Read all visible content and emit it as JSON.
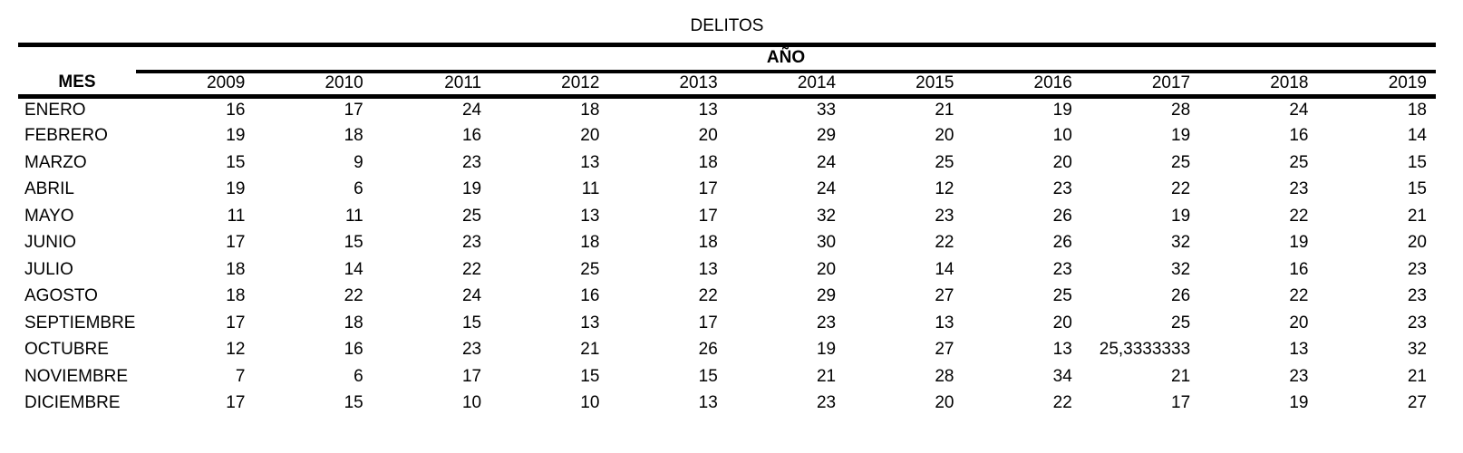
{
  "colors": {
    "background": "#ffffff",
    "text": "#000000",
    "border": "#000000"
  },
  "table": {
    "title": "DELITOS",
    "group_header": "AÑO",
    "row_header": "MES",
    "years": [
      "2009",
      "2010",
      "2011",
      "2012",
      "2013",
      "2014",
      "2015",
      "2016",
      "2017",
      "2018",
      "2019"
    ],
    "rows": [
      {
        "mes": "ENERO",
        "values": [
          "16",
          "17",
          "24",
          "18",
          "13",
          "33",
          "21",
          "19",
          "28",
          "24",
          "18"
        ]
      },
      {
        "mes": "FEBRERO",
        "values": [
          "19",
          "18",
          "16",
          "20",
          "20",
          "29",
          "20",
          "10",
          "19",
          "16",
          "14"
        ]
      },
      {
        "mes": "MARZO",
        "values": [
          "15",
          "9",
          "23",
          "13",
          "18",
          "24",
          "25",
          "20",
          "25",
          "25",
          "15"
        ]
      },
      {
        "mes": "ABRIL",
        "values": [
          "19",
          "6",
          "19",
          "11",
          "17",
          "24",
          "12",
          "23",
          "22",
          "23",
          "15"
        ]
      },
      {
        "mes": "MAYO",
        "values": [
          "11",
          "11",
          "25",
          "13",
          "17",
          "32",
          "23",
          "26",
          "19",
          "22",
          "21"
        ]
      },
      {
        "mes": "JUNIO",
        "values": [
          "17",
          "15",
          "23",
          "18",
          "18",
          "30",
          "22",
          "26",
          "32",
          "19",
          "20"
        ]
      },
      {
        "mes": "JULIO",
        "values": [
          "18",
          "14",
          "22",
          "25",
          "13",
          "20",
          "14",
          "23",
          "32",
          "16",
          "23"
        ]
      },
      {
        "mes": "AGOSTO",
        "values": [
          "18",
          "22",
          "24",
          "16",
          "22",
          "29",
          "27",
          "25",
          "26",
          "22",
          "23"
        ]
      },
      {
        "mes": "SEPTIEMBRE",
        "values": [
          "17",
          "18",
          "15",
          "13",
          "17",
          "23",
          "13",
          "20",
          "25",
          "20",
          "23"
        ]
      },
      {
        "mes": "OCTUBRE",
        "values": [
          "12",
          "16",
          "23",
          "21",
          "26",
          "19",
          "27",
          "13",
          "25,3333333",
          "13",
          "32"
        ]
      },
      {
        "mes": "NOVIEMBRE",
        "values": [
          "7",
          "6",
          "17",
          "15",
          "15",
          "21",
          "28",
          "34",
          "21",
          "23",
          "21"
        ]
      },
      {
        "mes": "DICIEMBRE",
        "values": [
          "17",
          "15",
          "10",
          "10",
          "13",
          "23",
          "20",
          "22",
          "17",
          "19",
          "27"
        ]
      }
    ]
  },
  "chart_data": {
    "type": "table",
    "title": "DELITOS",
    "column_group_label": "AÑO",
    "row_header_label": "MES",
    "categories": [
      "ENERO",
      "FEBRERO",
      "MARZO",
      "ABRIL",
      "MAYO",
      "JUNIO",
      "JULIO",
      "AGOSTO",
      "SEPTIEMBRE",
      "OCTUBRE",
      "NOVIEMBRE",
      "DICIEMBRE"
    ],
    "series": [
      {
        "name": "2009",
        "values": [
          16,
          19,
          15,
          19,
          11,
          17,
          18,
          18,
          17,
          12,
          7,
          17
        ]
      },
      {
        "name": "2010",
        "values": [
          17,
          18,
          9,
          6,
          11,
          15,
          14,
          22,
          18,
          16,
          6,
          15
        ]
      },
      {
        "name": "2011",
        "values": [
          24,
          16,
          23,
          19,
          25,
          23,
          22,
          24,
          15,
          23,
          17,
          10
        ]
      },
      {
        "name": "2012",
        "values": [
          18,
          20,
          13,
          11,
          13,
          18,
          25,
          16,
          13,
          21,
          15,
          10
        ]
      },
      {
        "name": "2013",
        "values": [
          13,
          20,
          18,
          17,
          17,
          18,
          13,
          22,
          17,
          26,
          15,
          13
        ]
      },
      {
        "name": "2014",
        "values": [
          33,
          29,
          24,
          24,
          32,
          30,
          20,
          29,
          23,
          19,
          21,
          23
        ]
      },
      {
        "name": "2015",
        "values": [
          21,
          20,
          25,
          12,
          23,
          22,
          14,
          27,
          13,
          27,
          28,
          20
        ]
      },
      {
        "name": "2016",
        "values": [
          19,
          10,
          20,
          23,
          26,
          26,
          23,
          25,
          20,
          13,
          34,
          22
        ]
      },
      {
        "name": "2017",
        "values": [
          28,
          19,
          25,
          22,
          19,
          32,
          32,
          26,
          25,
          25.3333333,
          21,
          17
        ]
      },
      {
        "name": "2018",
        "values": [
          24,
          16,
          25,
          23,
          22,
          19,
          16,
          22,
          20,
          13,
          23,
          19
        ]
      },
      {
        "name": "2019",
        "values": [
          18,
          14,
          15,
          15,
          21,
          20,
          23,
          23,
          23,
          32,
          21,
          27
        ]
      }
    ],
    "layout": {
      "grid": false,
      "legend": "none"
    }
  }
}
